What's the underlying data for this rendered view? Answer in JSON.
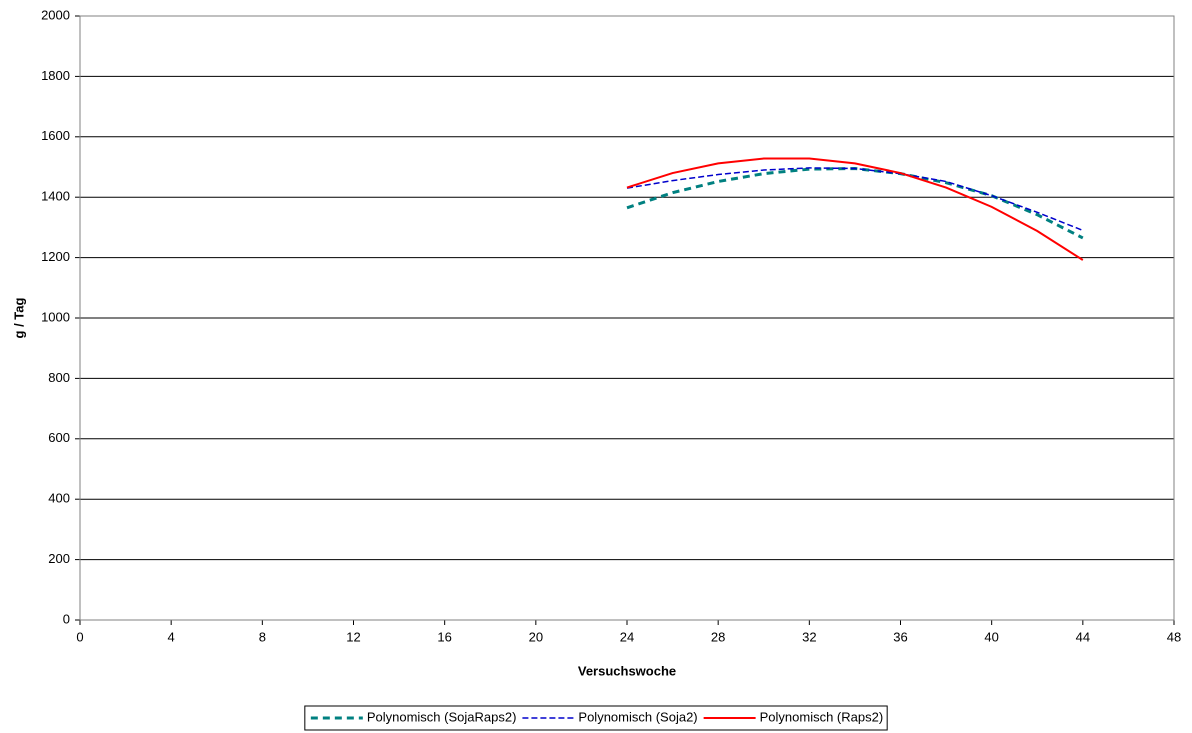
{
  "chart_data": {
    "type": "line",
    "x_label": "Versuchswoche",
    "y_label": "g / Tag",
    "x": [
      24,
      26,
      28,
      30,
      32,
      34,
      36,
      38,
      40,
      42,
      44
    ],
    "series": [
      {
        "name": "Polynomisch (SojaRaps2)",
        "color": "#008080",
        "style": "dashed",
        "values": [
          1365,
          1415,
          1452,
          1478,
          1493,
          1495,
          1478,
          1448,
          1405,
          1342,
          1265
        ]
      },
      {
        "name": "Polynomisch (Soja2)",
        "color": "#0000cc",
        "style": "dashed",
        "values": [
          1430,
          1455,
          1475,
          1490,
          1497,
          1495,
          1478,
          1452,
          1405,
          1350,
          1290
        ]
      },
      {
        "name": "Polynomisch (Raps2)",
        "color": "#ff0000",
        "style": "solid",
        "values": [
          1432,
          1480,
          1512,
          1528,
          1528,
          1512,
          1480,
          1432,
          1368,
          1288,
          1192
        ]
      }
    ],
    "xlim": [
      0,
      48
    ],
    "xticks": [
      0,
      4,
      8,
      12,
      16,
      20,
      24,
      28,
      32,
      36,
      40,
      44,
      48
    ],
    "ylim": [
      0,
      2000
    ],
    "yticks": [
      0,
      200,
      400,
      600,
      800,
      1000,
      1200,
      1400,
      1600,
      1800,
      2000
    ],
    "grid": true,
    "legend": "bottom"
  }
}
